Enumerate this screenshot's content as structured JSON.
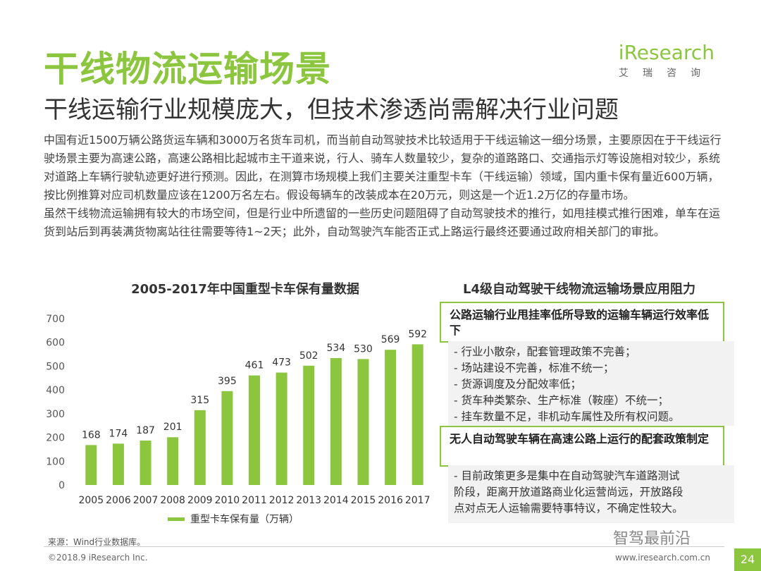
{
  "header": {
    "title": "干线物流运输场景",
    "subtitle": "干线运输行业规模庞大，但技术渗透尚需解决行业问题",
    "logo_i": "i",
    "logo_text": "Research",
    "logo_sub": "艾瑞咨询"
  },
  "body": {
    "para1": "中国有近1500万辆公路货运车辆和3000万名货车司机，而当前自动驾驶技术比较适用于干线运输这一细分场景，主要原因在于干线运行驶场景主要为高速公路，高速公路相比起城市主干道来说，行人、骑车人数量较少，复杂的道路路口、交通指示灯等设施相对较少，系统对道路上车辆行驶轨迹更好进行预测。因此，在测算市场规模上我们主要关注重型卡车（干线运输）领域，国内重卡保有量近600万辆，按比例推算对应司机数量应该在1200万名左右。假设每辆车的改装成本在20万元，则这是一个近1.2万亿的存量市场。",
    "para2": "虽然干线物流运输拥有较大的市场空间，但是行业中所遗留的一些历史问题阻碍了自动驾驶技术的推行，如甩挂模式推行困难，单车在运货到站后到再装满货物离站往往需要等待1~2天；此外，自动驾驶汽车能否正式上路运行最终还要通过政府相关部门的审批。"
  },
  "chart_data": {
    "type": "bar",
    "title": "2005-2017年中国重型卡车保有量数据",
    "categories": [
      "2005",
      "2006",
      "2007",
      "2008",
      "2009",
      "2010",
      "2011",
      "2012",
      "2013",
      "2014",
      "2015",
      "2016",
      "2017"
    ],
    "series": [
      {
        "name": "重型卡车保有量（万辆）",
        "values": [
          168,
          174,
          187,
          201,
          315,
          395,
          461,
          473,
          502,
          534,
          530,
          569,
          592
        ]
      }
    ],
    "ylim": [
      0,
      700
    ],
    "yticks": [
      0,
      100,
      200,
      300,
      400,
      500,
      600,
      700
    ],
    "legend": "bottom",
    "color": "#8cc63f"
  },
  "panel": {
    "title": "L4级自动驾驶干线物流运输场景应用阻力",
    "box1_head": "公路运输行业甩挂率低所导致的运输车辆运行效率低下",
    "box1_items": [
      "- 行业小散杂，配套管理政策不完善；",
      "- 场站建设不完善，标准不统一；",
      "- 货源调度及分配效率低；",
      "- 货车种类繁杂、生产标准（鞍座）不统一；",
      "- 挂车数量不足，非机动车属性及所有权问题。"
    ],
    "box2_head": "无人自动驾驶车辆在高速公路上运行的配套政策制定",
    "box2_items": [
      "- 目前政策更多是集中在自动驾驶汽车道路测试",
      "阶段，距离开放道路商业化运营尚远，开放路段",
      "点对点无人运输需要特事特议，不确定性较大。"
    ]
  },
  "footer": {
    "source": "来源：Wind行业数据库。",
    "copyright": "©2018.9 iResearch Inc.",
    "website": "www.iresearch.com.cn",
    "page": "24",
    "watermark": "智驾最前沿"
  }
}
